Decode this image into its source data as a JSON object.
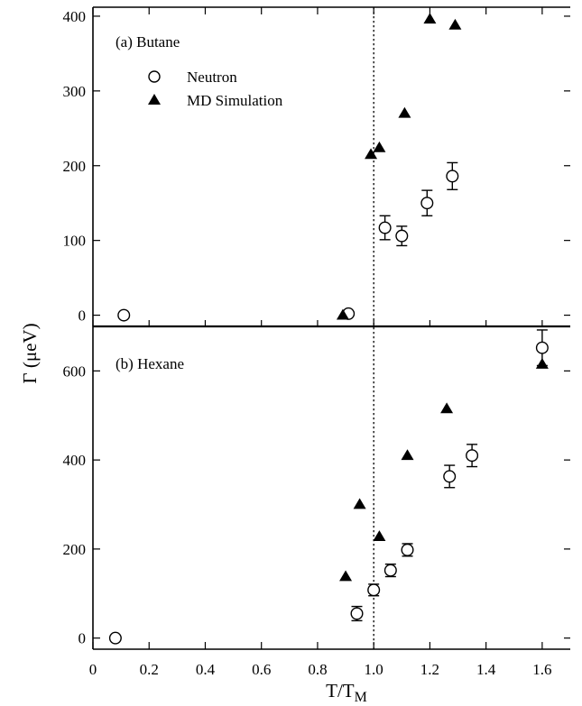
{
  "chart_data": {
    "type": "scatter",
    "xlabel_main": "T/T",
    "xlabel_sub": "M",
    "ylabel": "Γ (μeV)",
    "xlim": [
      0,
      1.7
    ],
    "x_ticks": [
      "0",
      "0.2",
      "0.4",
      "0.6",
      "0.8",
      "1.0",
      "1.2",
      "1.4",
      "1.6"
    ],
    "vline_x": 1.0,
    "legend": {
      "placement": "top-left",
      "entries": [
        {
          "name": "Neutron",
          "marker": "open-circle"
        },
        {
          "name": "MD Simulation",
          "marker": "filled-triangle"
        }
      ]
    },
    "panels": [
      {
        "label": "(a) Butane",
        "ylim": [
          -15,
          412
        ],
        "y_ticks": [
          "0",
          "100",
          "200",
          "300",
          "400"
        ],
        "series": [
          {
            "name": "Neutron",
            "points": [
              {
                "x": 0.11,
                "y": 0,
                "err": 0
              },
              {
                "x": 0.91,
                "y": 2,
                "err": 0
              },
              {
                "x": 1.04,
                "y": 117,
                "err": 16
              },
              {
                "x": 1.1,
                "y": 106,
                "err": 13
              },
              {
                "x": 1.19,
                "y": 150,
                "err": 17
              },
              {
                "x": 1.28,
                "y": 186,
                "err": 18
              }
            ]
          },
          {
            "name": "MD Simulation",
            "points": [
              {
                "x": 0.89,
                "y": 0
              },
              {
                "x": 0.99,
                "y": 215
              },
              {
                "x": 1.02,
                "y": 224
              },
              {
                "x": 1.11,
                "y": 270
              },
              {
                "x": 1.2,
                "y": 396
              },
              {
                "x": 1.29,
                "y": 388
              }
            ]
          }
        ]
      },
      {
        "label": "(b) Hexane",
        "ylim": [
          -25,
          700
        ],
        "y_ticks": [
          "0",
          "200",
          "400",
          "600"
        ],
        "series": [
          {
            "name": "Neutron",
            "points": [
              {
                "x": 0.08,
                "y": 0,
                "err": 0
              },
              {
                "x": 0.94,
                "y": 55,
                "err": 16
              },
              {
                "x": 1.0,
                "y": 108,
                "err": 13
              },
              {
                "x": 1.06,
                "y": 152,
                "err": 14
              },
              {
                "x": 1.12,
                "y": 198,
                "err": 14
              },
              {
                "x": 1.27,
                "y": 363,
                "err": 25
              },
              {
                "x": 1.35,
                "y": 410,
                "err": 25
              },
              {
                "x": 1.6,
                "y": 652,
                "err": 40
              }
            ]
          },
          {
            "name": "MD Simulation",
            "points": [
              {
                "x": 0.9,
                "y": 138
              },
              {
                "x": 0.95,
                "y": 300
              },
              {
                "x": 1.02,
                "y": 228
              },
              {
                "x": 1.12,
                "y": 410
              },
              {
                "x": 1.26,
                "y": 515
              },
              {
                "x": 1.6,
                "y": 615
              }
            ]
          }
        ]
      }
    ]
  }
}
